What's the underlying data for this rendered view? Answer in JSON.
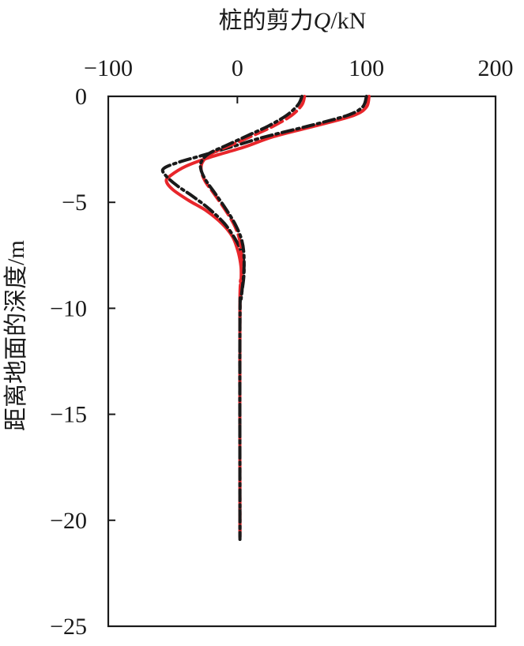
{
  "chart_data": {
    "type": "line",
    "title": "",
    "xlabel_prefix": "桩的剪力",
    "xlabel_var": "Q",
    "xlabel_unit": "/kN",
    "ylabel": "距离地面的深度/m",
    "xlim": [
      -100,
      200
    ],
    "ylim": [
      -25,
      0
    ],
    "x_ticks": [
      "−100",
      "0",
      "100",
      "200"
    ],
    "x_tick_values": [
      -100,
      0,
      100,
      200
    ],
    "y_ticks": [
      "0",
      "−5",
      "−10",
      "−15",
      "−20",
      "−25"
    ],
    "y_tick_values": [
      0,
      -5,
      -10,
      -15,
      -20,
      -25
    ],
    "x_axis_position": "top",
    "grid": false,
    "legend": "none",
    "series": [
      {
        "color": "#e8262b",
        "style": "solid",
        "points": [
          [
            102,
            0
          ],
          [
            100,
            -0.5
          ],
          [
            90,
            -0.9
          ],
          [
            60,
            -1.4
          ],
          [
            28,
            -1.9
          ],
          [
            5,
            -2.4
          ],
          [
            -20,
            -2.85
          ],
          [
            -40,
            -3.3
          ],
          [
            -52,
            -3.75
          ],
          [
            -55,
            -4.0
          ],
          [
            -50,
            -4.4
          ],
          [
            -38,
            -4.9
          ],
          [
            -24,
            -5.4
          ],
          [
            -12,
            -6.0
          ],
          [
            -4,
            -6.6
          ],
          [
            0,
            -7.2
          ],
          [
            2,
            -7.7
          ],
          [
            3,
            -8.2
          ],
          [
            3,
            -9.0
          ],
          [
            2,
            -10
          ],
          [
            2,
            -20.8
          ]
        ]
      },
      {
        "color": "#1a1a1a",
        "style": "dash-dot",
        "points": [
          [
            100,
            0
          ],
          [
            97,
            -0.5
          ],
          [
            85,
            -0.9
          ],
          [
            55,
            -1.4
          ],
          [
            22,
            -1.9
          ],
          [
            0,
            -2.3
          ],
          [
            -25,
            -2.75
          ],
          [
            -45,
            -3.1
          ],
          [
            -57,
            -3.4
          ],
          [
            -56,
            -3.7
          ],
          [
            -47,
            -4.2
          ],
          [
            -35,
            -4.7
          ],
          [
            -22,
            -5.3
          ],
          [
            -10,
            -6.0
          ],
          [
            -2,
            -6.7
          ],
          [
            3,
            -7.3
          ],
          [
            5,
            -7.8
          ],
          [
            5,
            -8.5
          ],
          [
            3,
            -9.5
          ],
          [
            2,
            -10.5
          ],
          [
            2,
            -20.9
          ]
        ]
      },
      {
        "color": "#e8262b",
        "style": "dashed",
        "points": [
          [
            52,
            0
          ],
          [
            50,
            -0.4
          ],
          [
            42,
            -0.9
          ],
          [
            28,
            -1.4
          ],
          [
            12,
            -1.85
          ],
          [
            -5,
            -2.3
          ],
          [
            -20,
            -2.7
          ],
          [
            -27,
            -3.1
          ],
          [
            -28,
            -3.5
          ],
          [
            -25,
            -4.0
          ],
          [
            -18,
            -4.6
          ],
          [
            -10,
            -5.3
          ],
          [
            -3,
            -6.0
          ],
          [
            1,
            -6.6
          ],
          [
            3,
            -7.3
          ],
          [
            3,
            -8.5
          ],
          [
            2,
            -10
          ],
          [
            2,
            -20.5
          ]
        ]
      },
      {
        "color": "#1a1a1a",
        "style": "dash-dot",
        "points": [
          [
            50,
            0
          ],
          [
            47,
            -0.4
          ],
          [
            38,
            -0.9
          ],
          [
            24,
            -1.4
          ],
          [
            8,
            -1.85
          ],
          [
            -8,
            -2.3
          ],
          [
            -22,
            -2.7
          ],
          [
            -28,
            -3.1
          ],
          [
            -28,
            -3.5
          ],
          [
            -24,
            -4.0
          ],
          [
            -17,
            -4.6
          ],
          [
            -9,
            -5.3
          ],
          [
            -2,
            -6.0
          ],
          [
            3,
            -6.7
          ],
          [
            5,
            -7.4
          ],
          [
            5,
            -8.3
          ],
          [
            3,
            -9.5
          ],
          [
            2,
            -10.5
          ],
          [
            2,
            -20.9
          ]
        ]
      }
    ]
  }
}
